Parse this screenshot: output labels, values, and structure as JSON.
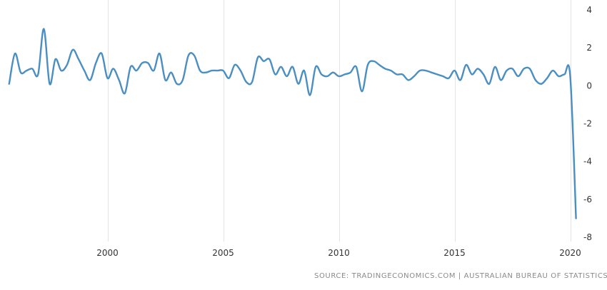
{
  "chart_data": {
    "type": "line",
    "title": "",
    "xlabel": "",
    "ylabel": "",
    "xlim": [
      1995.6,
      2020.75
    ],
    "ylim": [
      -8,
      4
    ],
    "x_ticks": [
      2000,
      2005,
      2010,
      2015,
      2020
    ],
    "x_tick_labels": [
      "2000",
      "2005",
      "2010",
      "2015",
      "2020"
    ],
    "y_ticks": [
      4,
      2,
      0,
      -2,
      -4,
      -6,
      -8
    ],
    "y_tick_labels": [
      "4",
      "2",
      "0",
      "-2",
      "-4",
      "-6",
      "-8"
    ],
    "grid": "vertical",
    "line_color": "#4a8ec2",
    "series": [
      {
        "x": [
          1995.75,
          1996.0,
          1996.25,
          1996.5,
          1996.75,
          1997.0,
          1997.25,
          1997.5,
          1997.75,
          1998.0,
          1998.25,
          1998.5,
          1998.75,
          1999.0,
          1999.25,
          1999.5,
          1999.75,
          2000.0,
          2000.25,
          2000.5,
          2000.75,
          2001.0,
          2001.25,
          2001.5,
          2001.75,
          2002.0,
          2002.25,
          2002.5,
          2002.75,
          2003.0,
          2003.25,
          2003.5,
          2003.75,
          2004.0,
          2004.25,
          2004.5,
          2004.75,
          2005.0,
          2005.25,
          2005.5,
          2005.75,
          2006.0,
          2006.25,
          2006.5,
          2006.75,
          2007.0,
          2007.25,
          2007.5,
          2007.75,
          2008.0,
          2008.25,
          2008.5,
          2008.75,
          2009.0,
          2009.25,
          2009.5,
          2009.75,
          2010.0,
          2010.25,
          2010.5,
          2010.75,
          2011.0,
          2011.25,
          2011.5,
          2011.75,
          2012.0,
          2012.25,
          2012.5,
          2012.75,
          2013.0,
          2013.25,
          2013.5,
          2013.75,
          2014.0,
          2014.25,
          2014.5,
          2014.75,
          2015.0,
          2015.25,
          2015.5,
          2015.75,
          2016.0,
          2016.25,
          2016.5,
          2016.75,
          2017.0,
          2017.25,
          2017.5,
          2017.75,
          2018.0,
          2018.25,
          2018.5,
          2018.75,
          2019.0,
          2019.25,
          2019.5,
          2019.75,
          2020.0,
          2020.25
        ],
        "values": [
          0.1,
          1.7,
          0.7,
          0.8,
          0.9,
          0.6,
          3.0,
          0.1,
          1.4,
          0.8,
          1.1,
          1.9,
          1.4,
          0.8,
          0.3,
          1.2,
          1.7,
          0.4,
          0.9,
          0.3,
          -0.4,
          1.0,
          0.8,
          1.2,
          1.2,
          0.8,
          1.7,
          0.3,
          0.7,
          0.1,
          0.3,
          1.6,
          1.6,
          0.8,
          0.7,
          0.8,
          0.8,
          0.8,
          0.4,
          1.1,
          0.8,
          0.2,
          0.2,
          1.5,
          1.3,
          1.4,
          0.6,
          1.0,
          0.5,
          1.0,
          0.1,
          0.8,
          -0.5,
          1.0,
          0.6,
          0.5,
          0.7,
          0.5,
          0.6,
          0.7,
          1.0,
          -0.3,
          1.1,
          1.3,
          1.1,
          0.9,
          0.8,
          0.6,
          0.6,
          0.3,
          0.5,
          0.8,
          0.8,
          0.7,
          0.6,
          0.5,
          0.4,
          0.8,
          0.3,
          1.1,
          0.6,
          0.9,
          0.6,
          0.1,
          1.0,
          0.3,
          0.8,
          0.9,
          0.5,
          0.9,
          0.9,
          0.3,
          0.1,
          0.4,
          0.8,
          0.5,
          0.6,
          0.5,
          -7.0
        ]
      }
    ]
  },
  "footer": {
    "source": "SOURCE: TRADINGECONOMICS.COM  |  AUSTRALIAN BUREAU OF STATISTICS"
  }
}
